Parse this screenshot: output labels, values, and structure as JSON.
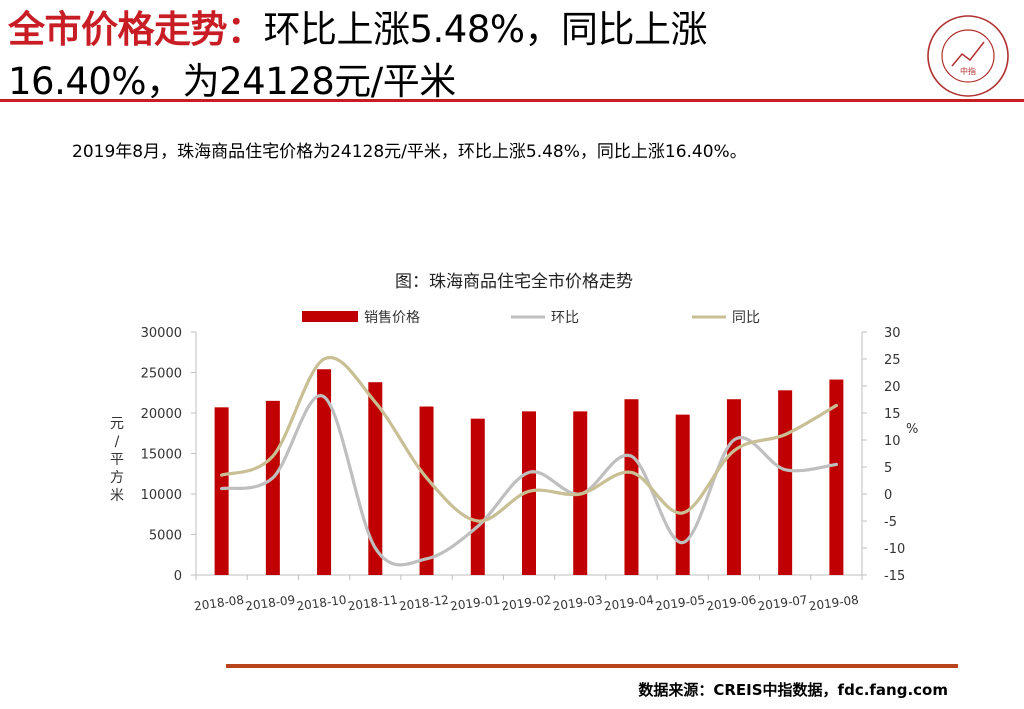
{
  "header": {
    "title_red": "全市价格走势：",
    "title_line1": "环比上涨5.48%，同比上涨",
    "title_line2": "16.40%，为24128元/平米",
    "logo_text": "中指"
  },
  "summary": "2019年8月，珠海商品住宅价格为24128元/平米，环比上涨5.48%，同比上涨16.40%。",
  "footer": {
    "source": "数据来源：CREIS中指数据，fdc.fang.com"
  },
  "colors": {
    "accent": "#c81d25",
    "bar": "#c00000",
    "mom": "#bfbfbf",
    "yoy": "#c9bf95",
    "footer_rule": "#b8441e"
  },
  "chart_data": {
    "type": "bar",
    "title": "图：珠海商品住宅全市价格走势",
    "categories": [
      "2018-08",
      "2018-09",
      "2018-10",
      "2018-11",
      "2018-12",
      "2019-01",
      "2019-02",
      "2019-03",
      "2019-04",
      "2019-05",
      "2019-06",
      "2019-07",
      "2019-08"
    ],
    "ylabel": "元/平方米",
    "y2label": "%",
    "ylim": [
      0,
      30000
    ],
    "y2lim": [
      -15,
      30
    ],
    "yticks": [
      "0",
      "5000",
      "10000",
      "15000",
      "20000",
      "25000",
      "30000"
    ],
    "y2ticks": [
      "-15",
      "-10",
      "-5",
      "0",
      "5",
      "10",
      "15",
      "20",
      "25",
      "30"
    ],
    "legend_position": "top",
    "series": [
      {
        "name": "销售价格",
        "type": "bar",
        "axis": "left",
        "values": [
          20700,
          21500,
          25400,
          23800,
          20800,
          19300,
          20200,
          20200,
          21700,
          19800,
          21700,
          22800,
          24128
        ]
      },
      {
        "name": "环比",
        "type": "line",
        "axis": "right",
        "values": [
          1,
          3,
          18,
          -10,
          -12,
          -6,
          4,
          0,
          7,
          -9,
          10,
          4.5,
          5.48
        ]
      },
      {
        "name": "同比",
        "type": "line",
        "axis": "right",
        "values": [
          3.5,
          7,
          25,
          17,
          3,
          -5,
          0.5,
          0,
          4,
          -3.5,
          8,
          11,
          16.4
        ]
      }
    ]
  }
}
